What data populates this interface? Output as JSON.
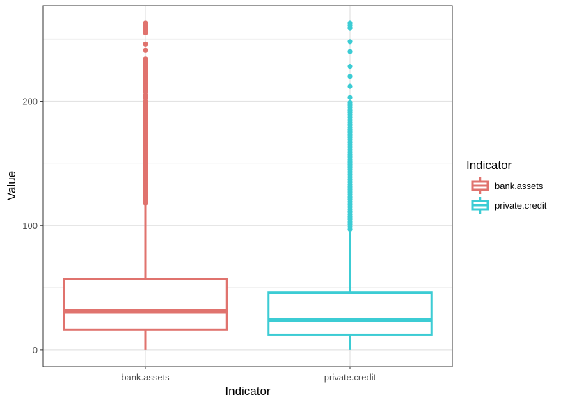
{
  "chart_data": {
    "type": "boxplot",
    "xlabel": "Indicator",
    "ylabel": "Value",
    "ylim": [
      -13.5,
      277
    ],
    "yticks": [
      0,
      100,
      200
    ],
    "grid": true,
    "legend": {
      "title": "Indicator",
      "placement": "right"
    },
    "categories": [
      "bank.assets",
      "private.credit"
    ],
    "colors": {
      "bank.assets": "#E0736E",
      "private.credit": "#3CCCD4"
    },
    "boxes": [
      {
        "category": "bank.assets",
        "min": 0,
        "q1": 16,
        "median": 31,
        "q3": 57,
        "max": 117,
        "outliers": [
          118,
          120,
          122,
          124,
          126,
          128,
          130,
          132,
          134,
          136,
          138,
          140,
          142,
          144,
          146,
          148,
          150,
          152,
          154,
          156,
          158,
          160,
          162,
          164,
          166,
          168,
          170,
          172,
          174,
          176,
          178,
          180,
          182,
          184,
          186,
          188,
          190,
          192,
          194,
          196,
          198,
          200,
          203,
          205,
          208,
          210,
          212,
          214,
          216,
          218,
          220,
          222,
          224,
          226,
          228,
          230,
          232,
          234,
          241,
          246,
          255,
          257,
          259,
          261,
          263
        ]
      },
      {
        "category": "private.credit",
        "min": 0,
        "q1": 12,
        "median": 24,
        "q3": 46,
        "max": 96,
        "outliers": [
          97,
          99,
          101,
          103,
          105,
          107,
          109,
          111,
          113,
          115,
          117,
          119,
          121,
          123,
          125,
          127,
          129,
          131,
          133,
          135,
          137,
          139,
          141,
          143,
          145,
          147,
          149,
          151,
          153,
          155,
          157,
          159,
          161,
          163,
          165,
          167,
          169,
          171,
          173,
          175,
          177,
          179,
          181,
          183,
          185,
          187,
          189,
          191,
          193,
          195,
          197,
          199,
          203,
          212,
          220,
          228,
          240,
          248,
          259,
          261,
          263
        ]
      }
    ]
  }
}
